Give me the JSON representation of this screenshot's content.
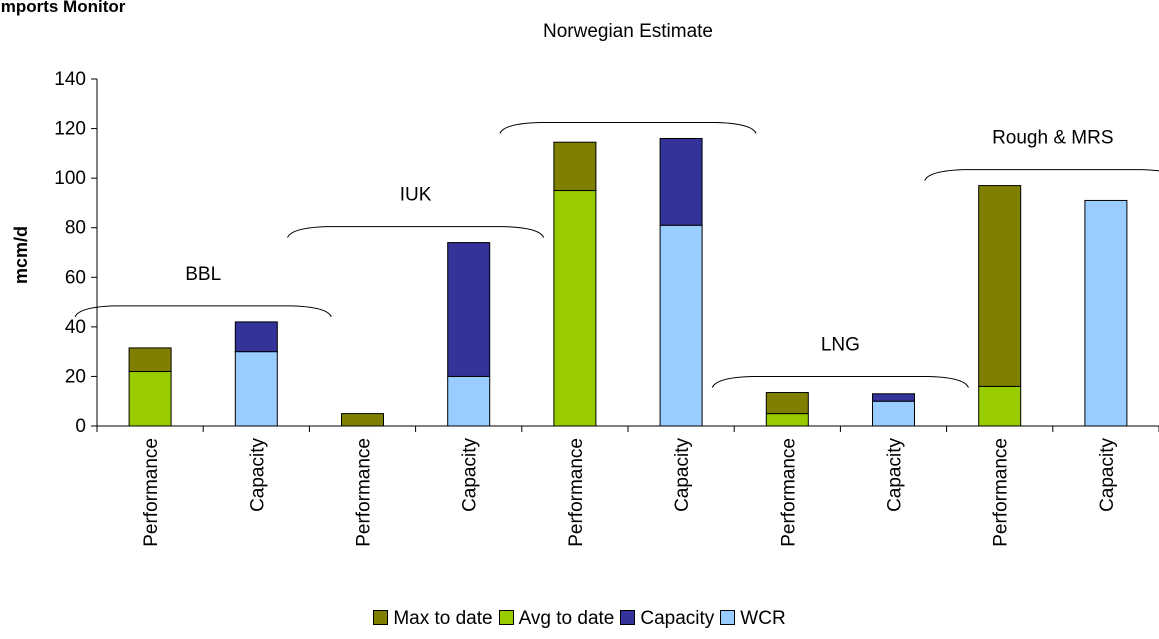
{
  "header": {
    "title": "Imports Monitor"
  },
  "chart_data": {
    "type": "bar",
    "stacked": true,
    "title": "Norwegian Estimate",
    "xlabel": "",
    "ylabel": "mcm/d",
    "ylim": [
      0,
      140
    ],
    "yticks": [
      0,
      20,
      40,
      60,
      80,
      100,
      120,
      140
    ],
    "grid": false,
    "legend_position": "bottom",
    "categories": [
      "Performance",
      "Capacity",
      "Performance",
      "Capacity",
      "Performance",
      "Capacity",
      "Performance",
      "Capacity",
      "Performance",
      "Capacity"
    ],
    "groups": [
      {
        "label": "BBL",
        "categories": [
          0,
          1
        ]
      },
      {
        "label": "IUK",
        "categories": [
          2,
          3
        ]
      },
      {
        "label": "",
        "categories": [
          4,
          5
        ]
      },
      {
        "label": "LNG",
        "categories": [
          6,
          7
        ]
      },
      {
        "label": "Rough & MRS",
        "categories": [
          8,
          9
        ]
      }
    ],
    "series": [
      {
        "name": "Avg to date",
        "color": "#99cc00",
        "values": [
          22,
          0,
          0,
          0,
          95,
          0,
          5,
          0,
          16,
          0
        ]
      },
      {
        "name": "Max to date",
        "color": "#808000",
        "values": [
          9.5,
          0,
          5,
          0,
          19.5,
          0,
          8.5,
          0,
          81,
          0
        ]
      },
      {
        "name": "WCR",
        "color": "#99ccff",
        "values": [
          0,
          30,
          0,
          20,
          0,
          81,
          0,
          10,
          0,
          91
        ]
      },
      {
        "name": "Capacity",
        "color": "#333399",
        "values": [
          0,
          12,
          0,
          54,
          0,
          35,
          0,
          3,
          0,
          0
        ]
      }
    ],
    "legend_order": [
      "Max to date",
      "Avg to date",
      "Capacity",
      "WCR"
    ]
  }
}
